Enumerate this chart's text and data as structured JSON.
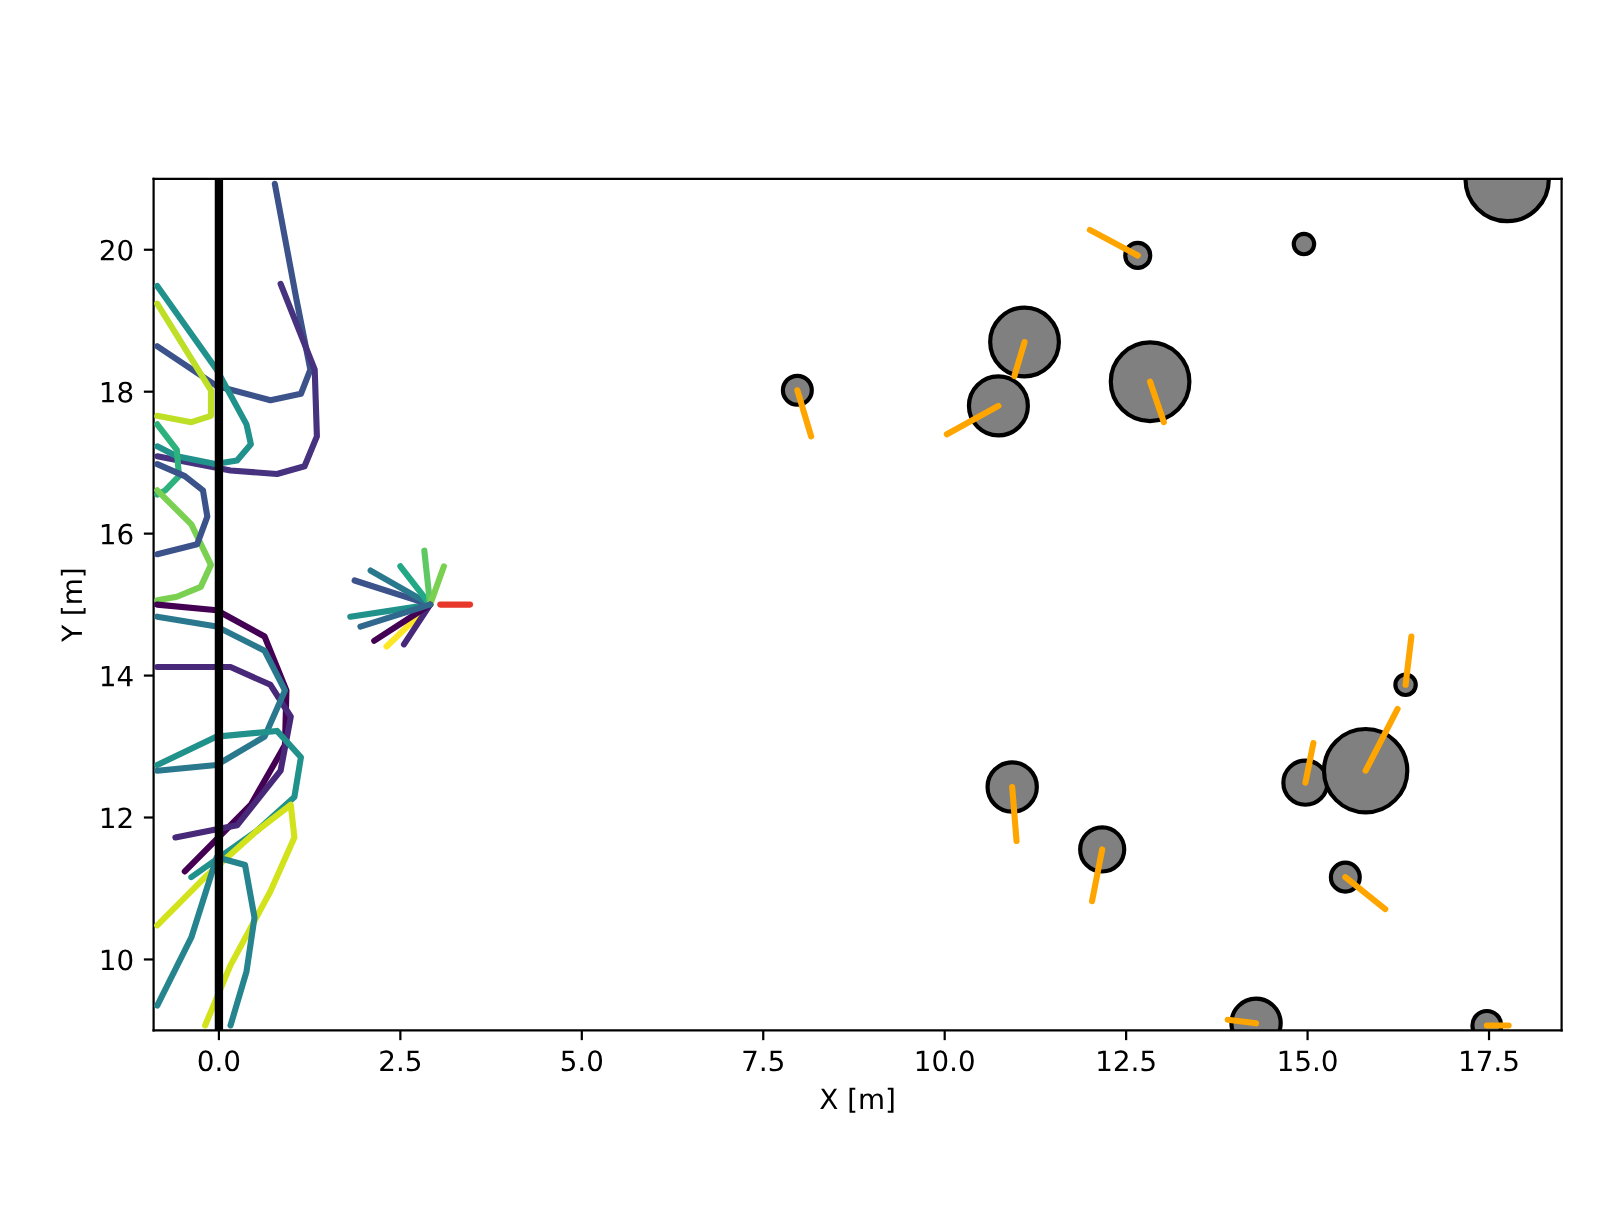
{
  "chart_data": {
    "type": "bubble",
    "xlabel": "X [m]",
    "ylabel": "Y [m]",
    "xlim": [
      -0.9,
      18.5
    ],
    "ylim": [
      9,
      21
    ],
    "xticks": [
      {
        "value": 0,
        "label": "0.0"
      },
      {
        "value": 2.5,
        "label": "2.5"
      },
      {
        "value": 5,
        "label": "5.0"
      },
      {
        "value": 7.5,
        "label": "7.5"
      },
      {
        "value": 10,
        "label": "10.0"
      },
      {
        "value": 12.5,
        "label": "12.5"
      },
      {
        "value": 15,
        "label": "15.0"
      },
      {
        "value": 17.5,
        "label": "17.5"
      }
    ],
    "yticks": [
      10,
      12,
      14,
      16,
      18,
      20
    ],
    "grid": false,
    "legend": false,
    "ref_lines": [
      {
        "axis": "x",
        "value": 0,
        "color": "#000000"
      }
    ],
    "series": [
      {
        "type": "line",
        "color": "#3b528b",
        "x": [
          0.77,
          1.07,
          1.26,
          1.13,
          0.71,
          -0.03,
          -0.85
        ],
        "values": [
          20.93,
          19.29,
          18.31,
          17.97,
          17.88,
          18.08,
          18.64
        ]
      },
      {
        "type": "line",
        "color": "#46327e",
        "x": [
          0.85,
          1.32,
          1.35,
          1.18,
          0.8,
          0.16,
          -0.85
        ],
        "values": [
          19.52,
          18.31,
          17.37,
          16.95,
          16.84,
          16.89,
          17.09
        ]
      },
      {
        "type": "line",
        "color": "#21918c",
        "x": [
          -0.85,
          -0.03,
          0.38,
          0.44,
          0.25,
          -0.05,
          -0.58,
          -0.85
        ],
        "values": [
          19.49,
          18.31,
          17.54,
          17.26,
          17.03,
          16.98,
          17.09,
          17.23
        ]
      },
      {
        "type": "line",
        "color": "#bddf26",
        "x": [
          -0.85,
          -0.11,
          -0.11,
          -0.38,
          -0.85
        ],
        "values": [
          19.24,
          18.02,
          17.66,
          17.57,
          17.66
        ]
      },
      {
        "type": "line",
        "color": "#2db27d",
        "x": [
          -0.85,
          -0.58,
          -0.55,
          -0.74,
          -0.85
        ],
        "values": [
          17.54,
          17.18,
          16.81,
          16.61,
          16.55
        ]
      },
      {
        "type": "line",
        "color": "#7ad151",
        "x": [
          -0.85,
          -0.38,
          -0.11,
          -0.25,
          -0.58,
          -0.85
        ],
        "values": [
          16.61,
          16.13,
          15.56,
          15.25,
          15.11,
          15.06
        ]
      },
      {
        "type": "line",
        "color": "#3b528b",
        "x": [
          -0.85,
          -0.3,
          -0.16,
          -0.22,
          -0.47,
          -0.85
        ],
        "values": [
          15.71,
          15.85,
          16.24,
          16.61,
          16.81,
          16.98
        ]
      },
      {
        "type": "line",
        "color": "#440154",
        "x": [
          -0.85,
          -0.03,
          0.63,
          0.93,
          0.91,
          0.44,
          -0.47
        ],
        "values": [
          15.0,
          14.92,
          14.55,
          13.79,
          13.02,
          12.18,
          11.24
        ]
      },
      {
        "type": "line",
        "color": "#482878",
        "x": [
          -0.85,
          0.16,
          0.71,
          0.99,
          0.85,
          0.25,
          -0.6
        ],
        "values": [
          14.12,
          14.12,
          13.87,
          13.42,
          12.66,
          11.89,
          11.72
        ]
      },
      {
        "type": "line",
        "color": "#2a788e",
        "x": [
          -0.85,
          -0.03,
          0.63,
          0.91,
          0.63,
          -0.03,
          -0.85
        ],
        "values": [
          14.83,
          14.69,
          14.35,
          13.79,
          13.14,
          12.74,
          12.66
        ]
      },
      {
        "type": "line",
        "color": "#21918c",
        "x": [
          -0.85,
          -0.03,
          0.8,
          1.13,
          1.04,
          0.52,
          -0.38
        ],
        "values": [
          12.74,
          13.14,
          13.22,
          12.85,
          12.29,
          11.81,
          11.16
        ]
      },
      {
        "type": "line",
        "color": "#d2e21b",
        "x": [
          -0.85,
          -0.19,
          0.52,
          0.99,
          1.04,
          0.71,
          0.16,
          -0.19
        ],
        "values": [
          10.48,
          11.16,
          11.81,
          12.18,
          11.72,
          10.96,
          9.92,
          9.07
        ]
      },
      {
        "type": "line",
        "color": "#25848e",
        "x": [
          -0.85,
          -0.38,
          -0.03,
          0.36,
          0.49,
          0.38,
          0.16
        ],
        "values": [
          9.35,
          10.31,
          11.44,
          11.33,
          10.59,
          9.83,
          9.07
        ]
      },
      {
        "type": "line",
        "color": "#21918c",
        "x": [
          2.91,
          1.81
        ],
        "values": [
          15.0,
          14.83
        ]
      },
      {
        "type": "line",
        "color": "#3b528b",
        "x": [
          2.91,
          1.87
        ],
        "values": [
          15.0,
          15.34
        ]
      },
      {
        "type": "line",
        "color": "#2a788e",
        "x": [
          2.91,
          2.09
        ],
        "values": [
          15.0,
          15.48
        ]
      },
      {
        "type": "line",
        "color": "#22a884",
        "x": [
          2.91,
          2.5
        ],
        "values": [
          15.0,
          15.54
        ]
      },
      {
        "type": "line",
        "color": "#5ec962",
        "x": [
          2.91,
          2.83
        ],
        "values": [
          15.0,
          15.76
        ]
      },
      {
        "type": "line",
        "color": "#7ad151",
        "x": [
          2.91,
          3.1
        ],
        "values": [
          15.0,
          15.54
        ]
      },
      {
        "type": "line",
        "color": "#fde725",
        "x": [
          2.91,
          2.31
        ],
        "values": [
          15.0,
          14.41
        ]
      },
      {
        "type": "line",
        "color": "#482878",
        "x": [
          2.91,
          2.55
        ],
        "values": [
          15.0,
          14.44
        ]
      },
      {
        "type": "line",
        "color": "#440154",
        "x": [
          2.91,
          2.14
        ],
        "values": [
          15.0,
          14.49
        ]
      },
      {
        "type": "line",
        "color": "#31688e",
        "x": [
          2.91,
          1.95
        ],
        "values": [
          15.0,
          14.69
        ]
      },
      {
        "type": "line",
        "color": "#e8382b",
        "x": [
          3.05,
          3.46
        ],
        "values": [
          15.0,
          15.0
        ]
      },
      {
        "type": "bubble",
        "color": "#808080",
        "x": [
          7.97,
          12.66,
          14.95,
          11.1,
          10.74,
          12.83,
          17.75,
          10.93,
          12.17,
          14.97,
          15.8,
          16.35,
          15.52,
          14.29,
          17.47
        ],
        "values": [
          18.02,
          19.92,
          20.08,
          18.7,
          17.8,
          18.14,
          20.99,
          12.43,
          11.55,
          12.49,
          12.66,
          13.87,
          11.16,
          9.1,
          9.07
        ],
        "sizes": [
          0.12,
          0.09,
          0.06,
          0.68,
          0.5,
          0.89,
          1,
          0.35,
          0.28,
          0.28,
          1,
          0.06,
          0.12,
          0.35,
          0.12
        ]
      },
      {
        "type": "line",
        "color": "#ffa500",
        "x": [
          7.97,
          8.16,
          null,
          12.66,
          12.0,
          null,
          11.1,
          10.96,
          null,
          10.74,
          10.03,
          null,
          12.83,
          13.02,
          null,
          10.93,
          10.99,
          null,
          12.17,
          12.03,
          null,
          14.97,
          15.08,
          null,
          15.8,
          16.24,
          null,
          16.35,
          16.43,
          null,
          15.52,
          16.07,
          null,
          14.29,
          13.9,
          null,
          17.47,
          17.77
        ],
        "values": [
          18.02,
          17.37,
          null,
          19.92,
          20.28,
          null,
          18.7,
          18.22,
          null,
          17.8,
          17.4,
          null,
          18.14,
          17.57,
          null,
          12.43,
          11.67,
          null,
          11.55,
          10.82,
          null,
          12.49,
          13.05,
          null,
          12.66,
          13.53,
          null,
          13.87,
          14.55,
          null,
          11.16,
          10.71,
          null,
          9.1,
          9.15,
          null,
          9.07,
          9.07
        ]
      }
    ]
  }
}
